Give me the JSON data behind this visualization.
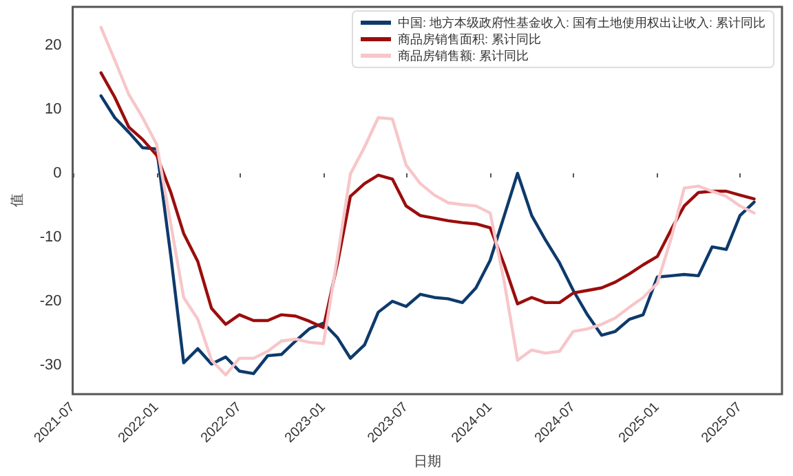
{
  "chart_data": {
    "type": "line",
    "xlabel": "日期",
    "ylabel": "值",
    "x": [
      "2021-09",
      "2021-10",
      "2021-11",
      "2021-12",
      "2022-01",
      "2022-02",
      "2022-03",
      "2022-04",
      "2022-05",
      "2022-06",
      "2022-07",
      "2022-08",
      "2022-09",
      "2022-10",
      "2022-11",
      "2022-12",
      "2023-01",
      "2023-02",
      "2023-03",
      "2023-04",
      "2023-05",
      "2023-06",
      "2023-07",
      "2023-08",
      "2023-09",
      "2023-10",
      "2023-11",
      "2023-12",
      "2024-01",
      "2024-02",
      "2024-03",
      "2024-04",
      "2024-05",
      "2024-06",
      "2024-07",
      "2024-08",
      "2024-09",
      "2024-10",
      "2024-11",
      "2024-12",
      "2025-01",
      "2025-02",
      "2025-03",
      "2025-04",
      "2025-05",
      "2025-06",
      "2025-07",
      "2025-08"
    ],
    "series": [
      {
        "name": "中国: 地方本级政府性基金收入: 国有土地使用权出让收入: 累计同比",
        "color": "#0d3a6b",
        "values": [
          12.1,
          8.7,
          6.4,
          4,
          3.8,
          -13,
          -29.6,
          -27.4,
          -29.8,
          -28.7,
          -30.9,
          -31.3,
          -28.5,
          -28.3,
          -26.2,
          -24.3,
          -23.4,
          -25.7,
          -28.9,
          -26.8,
          -21.7,
          -20,
          -20.8,
          -18.9,
          -19.4,
          -19.6,
          -20.2,
          -17.9,
          -13.6,
          -6.6,
          0,
          -6.6,
          -10.4,
          -14,
          -18.3,
          -22.1,
          -25.3,
          -24.7,
          -22.8,
          -22.1,
          -16.2,
          -16,
          -15.8,
          -16,
          -11.5,
          -11.9,
          -6.6,
          -4.5
        ]
      },
      {
        "name": "商品房销售面积: 累计同比",
        "color": "#9b0d0d",
        "values": [
          15.7,
          11.9,
          7.2,
          5.3,
          2.8,
          -3,
          -9.4,
          -13.8,
          -21.1,
          -23.6,
          -22.1,
          -23,
          -23,
          -22.1,
          -22.3,
          -23.1,
          -24.1,
          -14,
          -3.6,
          -1.6,
          -0.3,
          -0.9,
          -5.1,
          -6.6,
          -7,
          -7.4,
          -7.7,
          -7.9,
          -8.5,
          -14.3,
          -20.4,
          -19.4,
          -20.2,
          -20.2,
          -18.7,
          -18.3,
          -17.9,
          -17,
          -15.7,
          -14.3,
          -13,
          -8.7,
          -5.1,
          -3,
          -2.8,
          -2.8,
          -3.4,
          -4
        ]
      },
      {
        "name": "商品房销售额: 累计同比",
        "color": "#f7c6c9",
        "values": [
          22.8,
          17.7,
          12.3,
          8.7,
          4.5,
          -8,
          -19.4,
          -22.8,
          -29.2,
          -31.5,
          -28.9,
          -28.9,
          -27.8,
          -26.2,
          -25.9,
          -26.4,
          -26.6,
          -13,
          -0.1,
          4.1,
          8.7,
          8.5,
          1.3,
          -1.6,
          -3.4,
          -4.6,
          -4.9,
          -5.1,
          -6.2,
          -17,
          -29.2,
          -27.6,
          -28.1,
          -27.8,
          -24.7,
          -24.3,
          -23.6,
          -22.6,
          -20.9,
          -19.4,
          -17.2,
          -10,
          -2.3,
          -2,
          -2.8,
          -3.6,
          -5.1,
          -6.2
        ]
      }
    ],
    "xlim": [
      "2021-07",
      "2025-10"
    ],
    "xticks": [
      "2021-07",
      "2022-01",
      "2022-07",
      "2023-01",
      "2023-07",
      "2024-01",
      "2024-07",
      "2025-01",
      "2025-07"
    ],
    "ylim": [
      -34.5,
      26
    ],
    "yticks": [
      -30,
      -20,
      -10,
      0,
      10,
      20
    ],
    "legend": "top right",
    "grid": false,
    "marker": "none",
    "line_style": "solid"
  }
}
